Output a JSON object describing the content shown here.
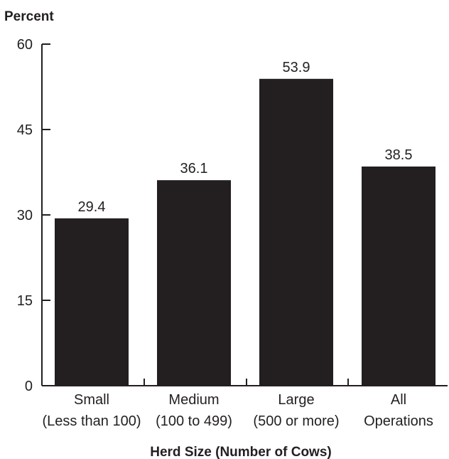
{
  "chart_data": {
    "type": "bar",
    "ylabel": "Percent",
    "xlabel": "Herd Size (Number of Cows)",
    "ylim": [
      0,
      60
    ],
    "yticks": [
      0,
      15,
      30,
      45,
      60
    ],
    "categories": [
      {
        "line1": "Small",
        "line2": "(Less than 100)"
      },
      {
        "line1": "Medium",
        "line2": "(100 to 499)"
      },
      {
        "line1": "Large",
        "line2": "(500 or more)"
      },
      {
        "line1": "All",
        "line2": "Operations"
      }
    ],
    "values": [
      29.4,
      36.1,
      53.9,
      38.5
    ],
    "data_labels": [
      "29.4",
      "36.1",
      "53.9",
      "38.5"
    ],
    "bar_color": "#231f20",
    "grid": false
  }
}
